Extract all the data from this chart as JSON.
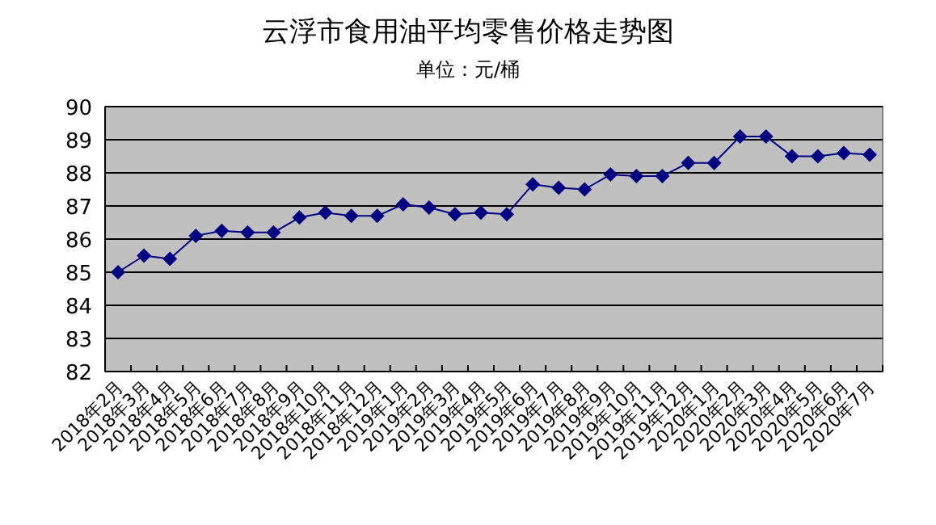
{
  "chart_data": {
    "type": "line",
    "title": "云浮市食用油平均零售价格走势图",
    "subtitle": "单位：元/桶",
    "categories": [
      "2018年2月",
      "2018年3月",
      "2018年4月",
      "2018年5月",
      "2018年6月",
      "2018年7月",
      "2018年8月",
      "2018年9月",
      "2018年10月",
      "2018年11月",
      "2018年12月",
      "2019年1月",
      "2019年2月",
      "2019年3月",
      "2019年4月",
      "2019年5月",
      "2019年6月",
      "2019年7月",
      "2019年8月",
      "2019年9月",
      "2019年10月",
      "2019年11月",
      "2019年12月",
      "2020年1月",
      "2020年2月",
      "2020年3月",
      "2020年4月",
      "2020年5月",
      "2020年6月",
      "2020年7月"
    ],
    "series": [
      {
        "color": "#000080",
        "values": [
          85.0,
          85.5,
          85.4,
          86.1,
          86.25,
          86.2,
          86.2,
          86.65,
          86.8,
          86.7,
          86.7,
          87.05,
          86.95,
          86.75,
          86.8,
          86.75,
          87.65,
          87.55,
          87.5,
          87.95,
          87.9,
          87.9,
          88.3,
          88.3,
          89.1,
          89.1,
          88.5,
          88.5,
          88.6,
          88.55
        ]
      }
    ],
    "ylim": [
      82,
      90
    ],
    "yticks": [
      82,
      83,
      84,
      85,
      86,
      87,
      88,
      89,
      90
    ],
    "grid": "y",
    "marker": "diamond",
    "line_style": "solid"
  }
}
